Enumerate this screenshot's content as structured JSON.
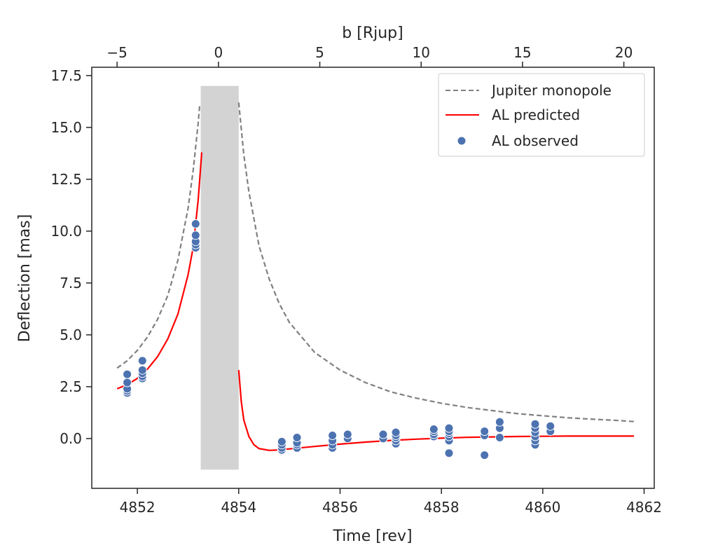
{
  "chart_data": {
    "type": "scatter",
    "xlabel": "Time [rev]",
    "ylabel": "Deflection [mas]",
    "top_xlabel": "b [Rjup]",
    "xlim": [
      4851.1,
      4862.2
    ],
    "ylim": [
      -2.4,
      17.9
    ],
    "xticks": [
      4852,
      4854,
      4856,
      4858,
      4860,
      4862
    ],
    "yticks": [
      0.0,
      2.5,
      5.0,
      7.5,
      10.0,
      12.5,
      15.0,
      17.5
    ],
    "ytick_labels": [
      "0.0",
      "2.5",
      "5.0",
      "7.5",
      "10.0",
      "12.5",
      "15.0",
      "17.5"
    ],
    "top_xticks": [
      -5,
      0,
      5,
      10,
      15,
      20
    ],
    "top_xticks_at_time": [
      4851.6,
      4853.6,
      4855.6,
      4857.6,
      4859.6,
      4861.6
    ],
    "grid": false,
    "legend_position": "top-right",
    "shaded_region": {
      "x": [
        4853.25,
        4854.0
      ],
      "y": [
        -1.5,
        17.0
      ],
      "color": "#d3d3d3"
    },
    "series": [
      {
        "name": "Jupiter monopole",
        "kind": "line-dashed",
        "color": "#808080",
        "points": [
          [
            4851.6,
            3.4
          ],
          [
            4851.8,
            3.75
          ],
          [
            4852.0,
            4.25
          ],
          [
            4852.2,
            4.9
          ],
          [
            4852.4,
            5.75
          ],
          [
            4852.6,
            6.9
          ],
          [
            4852.8,
            8.6
          ],
          [
            4853.0,
            11.1
          ],
          [
            4853.1,
            12.9
          ],
          [
            4853.2,
            15.2
          ],
          [
            4853.23,
            16.1
          ]
        ]
      },
      {
        "name": "",
        "kind": "line-dashed",
        "color": "#808080",
        "points": [
          [
            4854.0,
            16.2
          ],
          [
            4854.1,
            13.7
          ],
          [
            4854.2,
            11.9
          ],
          [
            4854.4,
            9.3
          ],
          [
            4854.6,
            7.7
          ],
          [
            4854.8,
            6.5
          ],
          [
            4855.0,
            5.6
          ],
          [
            4855.5,
            4.15
          ],
          [
            4856.0,
            3.3
          ],
          [
            4856.5,
            2.7
          ],
          [
            4857.0,
            2.25
          ],
          [
            4857.5,
            1.95
          ],
          [
            4858.0,
            1.7
          ],
          [
            4858.5,
            1.5
          ],
          [
            4859.0,
            1.35
          ],
          [
            4859.5,
            1.2
          ],
          [
            4860.0,
            1.1
          ],
          [
            4860.5,
            1.0
          ],
          [
            4861.0,
            0.93
          ],
          [
            4861.5,
            0.87
          ],
          [
            4861.8,
            0.82
          ]
        ]
      },
      {
        "name": "AL predicted",
        "kind": "line",
        "color": "#ff0000",
        "points": [
          [
            4851.6,
            2.4
          ],
          [
            4851.8,
            2.6
          ],
          [
            4852.0,
            2.9
          ],
          [
            4852.2,
            3.35
          ],
          [
            4852.4,
            3.95
          ],
          [
            4852.6,
            4.8
          ],
          [
            4852.8,
            6.0
          ],
          [
            4853.0,
            7.9
          ],
          [
            4853.1,
            9.2
          ],
          [
            4853.2,
            11.5
          ],
          [
            4853.27,
            13.8
          ]
        ]
      },
      {
        "name": "",
        "kind": "line",
        "color": "#ff0000",
        "points": [
          [
            4854.0,
            3.3
          ],
          [
            4854.05,
            1.8
          ],
          [
            4854.1,
            0.9
          ],
          [
            4854.2,
            0.1
          ],
          [
            4854.3,
            -0.3
          ],
          [
            4854.4,
            -0.48
          ],
          [
            4854.6,
            -0.57
          ],
          [
            4854.8,
            -0.55
          ],
          [
            4855.0,
            -0.5
          ],
          [
            4855.5,
            -0.38
          ],
          [
            4856.0,
            -0.27
          ],
          [
            4856.5,
            -0.17
          ],
          [
            4857.0,
            -0.09
          ],
          [
            4857.5,
            -0.03
          ],
          [
            4858.0,
            0.02
          ],
          [
            4858.5,
            0.06
          ],
          [
            4859.0,
            0.08
          ],
          [
            4859.5,
            0.1
          ],
          [
            4860.0,
            0.11
          ],
          [
            4860.5,
            0.12
          ],
          [
            4861.0,
            0.12
          ],
          [
            4861.5,
            0.12
          ],
          [
            4861.8,
            0.12
          ]
        ]
      },
      {
        "name": "AL observed",
        "kind": "scatter",
        "color": "#4c72b0",
        "points": [
          [
            4851.8,
            2.2
          ],
          [
            4851.8,
            2.3
          ],
          [
            4851.8,
            2.4
          ],
          [
            4851.8,
            2.7
          ],
          [
            4851.8,
            3.1
          ],
          [
            4852.1,
            2.9
          ],
          [
            4852.1,
            3.0
          ],
          [
            4852.1,
            3.15
          ],
          [
            4852.1,
            3.3
          ],
          [
            4852.1,
            3.75
          ],
          [
            4853.15,
            9.2
          ],
          [
            4853.15,
            9.35
          ],
          [
            4853.15,
            9.5
          ],
          [
            4853.15,
            9.8
          ],
          [
            4853.15,
            10.35
          ],
          [
            4854.85,
            -0.55
          ],
          [
            4854.85,
            -0.45
          ],
          [
            4854.85,
            -0.3
          ],
          [
            4854.85,
            -0.15
          ],
          [
            4855.15,
            -0.45
          ],
          [
            4855.15,
            -0.3
          ],
          [
            4855.15,
            -0.2
          ],
          [
            4855.15,
            0.05
          ],
          [
            4855.85,
            -0.45
          ],
          [
            4855.85,
            -0.3
          ],
          [
            4855.85,
            -0.1
          ],
          [
            4855.85,
            0.15
          ],
          [
            4856.15,
            0.0
          ],
          [
            4856.15,
            0.2
          ],
          [
            4856.85,
            0.0
          ],
          [
            4856.85,
            0.2
          ],
          [
            4857.1,
            -0.25
          ],
          [
            4857.1,
            -0.1
          ],
          [
            4857.1,
            0.05
          ],
          [
            4857.1,
            0.15
          ],
          [
            4857.1,
            0.3
          ],
          [
            4857.85,
            0.1
          ],
          [
            4857.85,
            0.2
          ],
          [
            4857.85,
            0.35
          ],
          [
            4857.85,
            0.45
          ],
          [
            4858.15,
            -0.7
          ],
          [
            4858.15,
            -0.1
          ],
          [
            4858.15,
            0.1
          ],
          [
            4858.15,
            0.25
          ],
          [
            4858.15,
            0.35
          ],
          [
            4858.15,
            0.5
          ],
          [
            4858.85,
            -0.8
          ],
          [
            4858.85,
            0.15
          ],
          [
            4858.85,
            0.35
          ],
          [
            4859.15,
            0.05
          ],
          [
            4859.15,
            0.5
          ],
          [
            4859.15,
            0.8
          ],
          [
            4859.85,
            -0.3
          ],
          [
            4859.85,
            -0.1
          ],
          [
            4859.85,
            0.1
          ],
          [
            4859.85,
            0.3
          ],
          [
            4859.85,
            0.5
          ],
          [
            4859.85,
            0.7
          ],
          [
            4860.15,
            0.35
          ],
          [
            4860.15,
            0.6
          ]
        ]
      }
    ]
  }
}
